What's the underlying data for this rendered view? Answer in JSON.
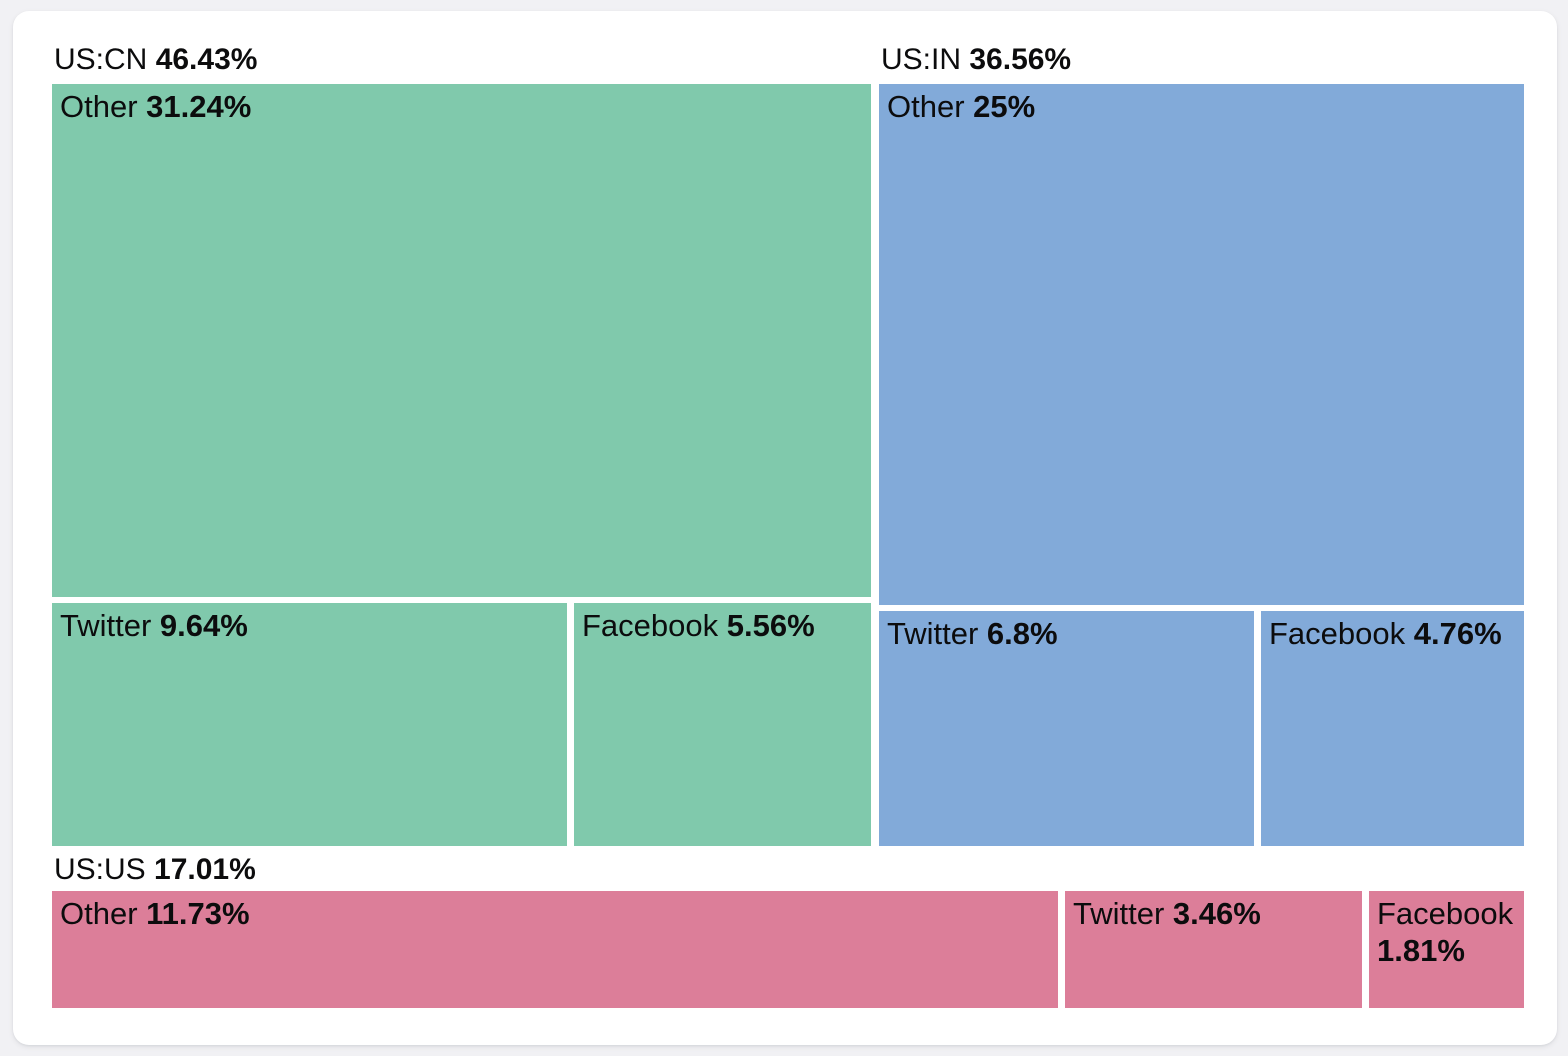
{
  "page": {
    "background_color": "#f1f1f4",
    "card_background_color": "#ffffff",
    "text_color": "#0c0c0d"
  },
  "chart_data": {
    "type": "treemap",
    "title": "",
    "value_unit": "%",
    "legend_position": "none",
    "layout_hints": {
      "top_row_groups": [
        "US:CN",
        "US:IN"
      ],
      "bottom_row_groups": [
        "US:US"
      ],
      "group_labels_outside_top": true,
      "child_order": [
        "Other",
        "Twitter",
        "Facebook"
      ]
    },
    "groups": [
      {
        "label": "US:CN",
        "value": 46.43,
        "display": "46.43%",
        "color": "#80c9ac",
        "children": [
          {
            "label": "Other",
            "value": 31.24,
            "display": "31.24%"
          },
          {
            "label": "Twitter",
            "value": 9.64,
            "display": "9.64%"
          },
          {
            "label": "Facebook",
            "value": 5.56,
            "display": "5.56%"
          }
        ]
      },
      {
        "label": "US:IN",
        "value": 36.56,
        "display": "36.56%",
        "color": "#82aad9",
        "children": [
          {
            "label": "Other",
            "value": 25,
            "display": "25%"
          },
          {
            "label": "Twitter",
            "value": 6.8,
            "display": "6.8%"
          },
          {
            "label": "Facebook",
            "value": 4.76,
            "display": "4.76%"
          }
        ]
      },
      {
        "label": "US:US",
        "value": 17.01,
        "display": "17.01%",
        "color": "#dc7e99",
        "children": [
          {
            "label": "Other",
            "value": 11.73,
            "display": "11.73%"
          },
          {
            "label": "Twitter",
            "value": 3.46,
            "display": "3.46%"
          },
          {
            "label": "Facebook",
            "value": 1.81,
            "display": "1.81%"
          }
        ]
      }
    ]
  }
}
